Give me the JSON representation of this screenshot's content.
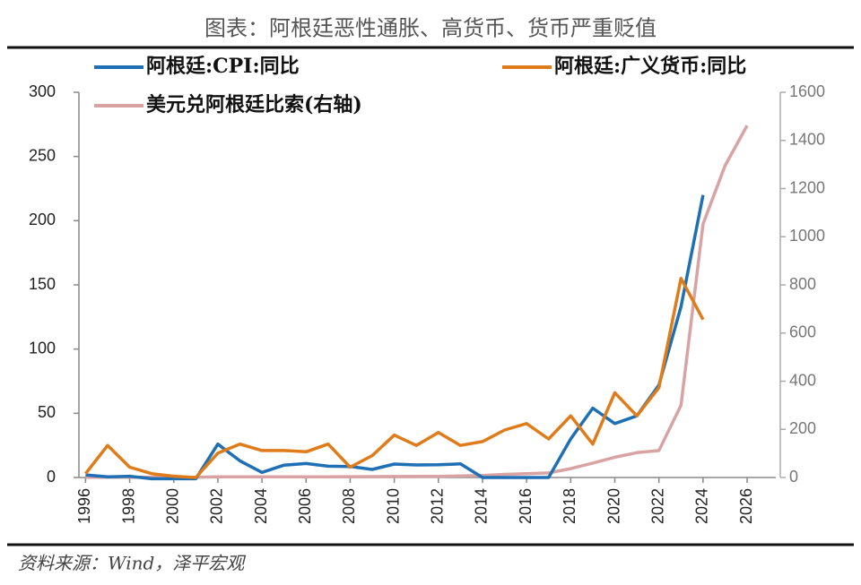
{
  "chart_data": {
    "type": "line",
    "title": "图表：阿根廷恶性通胀、高货币、货币严重贬值",
    "source": "资料来源：Wind，泽平宏观",
    "xlim": [
      1995.7,
      2027.3
    ],
    "xticks": [
      1996,
      1998,
      2000,
      2002,
      2004,
      2006,
      2008,
      2010,
      2012,
      2014,
      2016,
      2018,
      2020,
      2022,
      2024,
      2026
    ],
    "ylim": [
      0,
      300
    ],
    "yticks": [
      0,
      50,
      100,
      150,
      200,
      250,
      300
    ],
    "y2lim": [
      0,
      1600
    ],
    "y2ticks": [
      0,
      200,
      400,
      600,
      800,
      1000,
      1200,
      1400,
      1600
    ],
    "grid": false,
    "legend": "top-left",
    "series": [
      {
        "name": "阿根廷:CPI:同比",
        "color": "#1f6fb5",
        "x": [
          1996,
          1997,
          1998,
          1999,
          2000,
          2001,
          2002,
          2003,
          2004,
          2005,
          2006,
          2007,
          2008,
          2009,
          2010,
          2011,
          2012,
          2013,
          2014,
          2015,
          2016,
          2017,
          2018,
          2019,
          2020,
          2021,
          2022,
          2023,
          2024
        ],
        "values": [
          2,
          0.5,
          1,
          -1,
          -1,
          -1,
          26,
          13,
          4,
          9.6,
          10.9,
          8.8,
          8.6,
          6.3,
          10.5,
          9.8,
          10,
          10.6,
          0,
          0,
          0,
          0,
          30,
          54,
          42,
          48,
          72,
          133,
          220
        ]
      },
      {
        "name": "阿根廷:广义货币:同比",
        "color": "#e07b1a",
        "x": [
          1996,
          1997,
          1998,
          1999,
          2000,
          2001,
          2002,
          2003,
          2004,
          2005,
          2006,
          2007,
          2008,
          2009,
          2010,
          2011,
          2012,
          2013,
          2014,
          2015,
          2016,
          2017,
          2018,
          2019,
          2020,
          2021,
          2022,
          2023,
          2024
        ],
        "values": [
          3,
          25,
          8,
          3,
          1,
          0,
          19,
          26,
          21,
          21,
          20,
          26,
          8,
          17,
          33,
          25,
          35,
          25,
          28,
          37,
          42,
          30,
          48,
          26,
          66,
          48,
          70,
          155,
          123
        ]
      },
      {
        "name": "美元兑阿根廷比索(右轴)",
        "color": "#d9a3a3",
        "axis": "y2",
        "x": [
          1996,
          1997,
          1998,
          1999,
          2000,
          2001,
          2002,
          2003,
          2004,
          2005,
          2006,
          2007,
          2008,
          2009,
          2010,
          2011,
          2012,
          2013,
          2014,
          2015,
          2016,
          2017,
          2018,
          2019,
          2020,
          2021,
          2022,
          2023,
          2024,
          2025,
          2026
        ],
        "values": [
          1,
          1,
          1,
          1,
          1,
          1,
          3,
          3,
          3,
          3,
          3,
          3,
          3.4,
          3.8,
          4,
          4.3,
          4.9,
          6.5,
          8.5,
          13,
          16,
          19,
          37,
          60,
          84,
          103,
          112,
          300,
          1053,
          1295,
          1462
        ]
      }
    ]
  }
}
